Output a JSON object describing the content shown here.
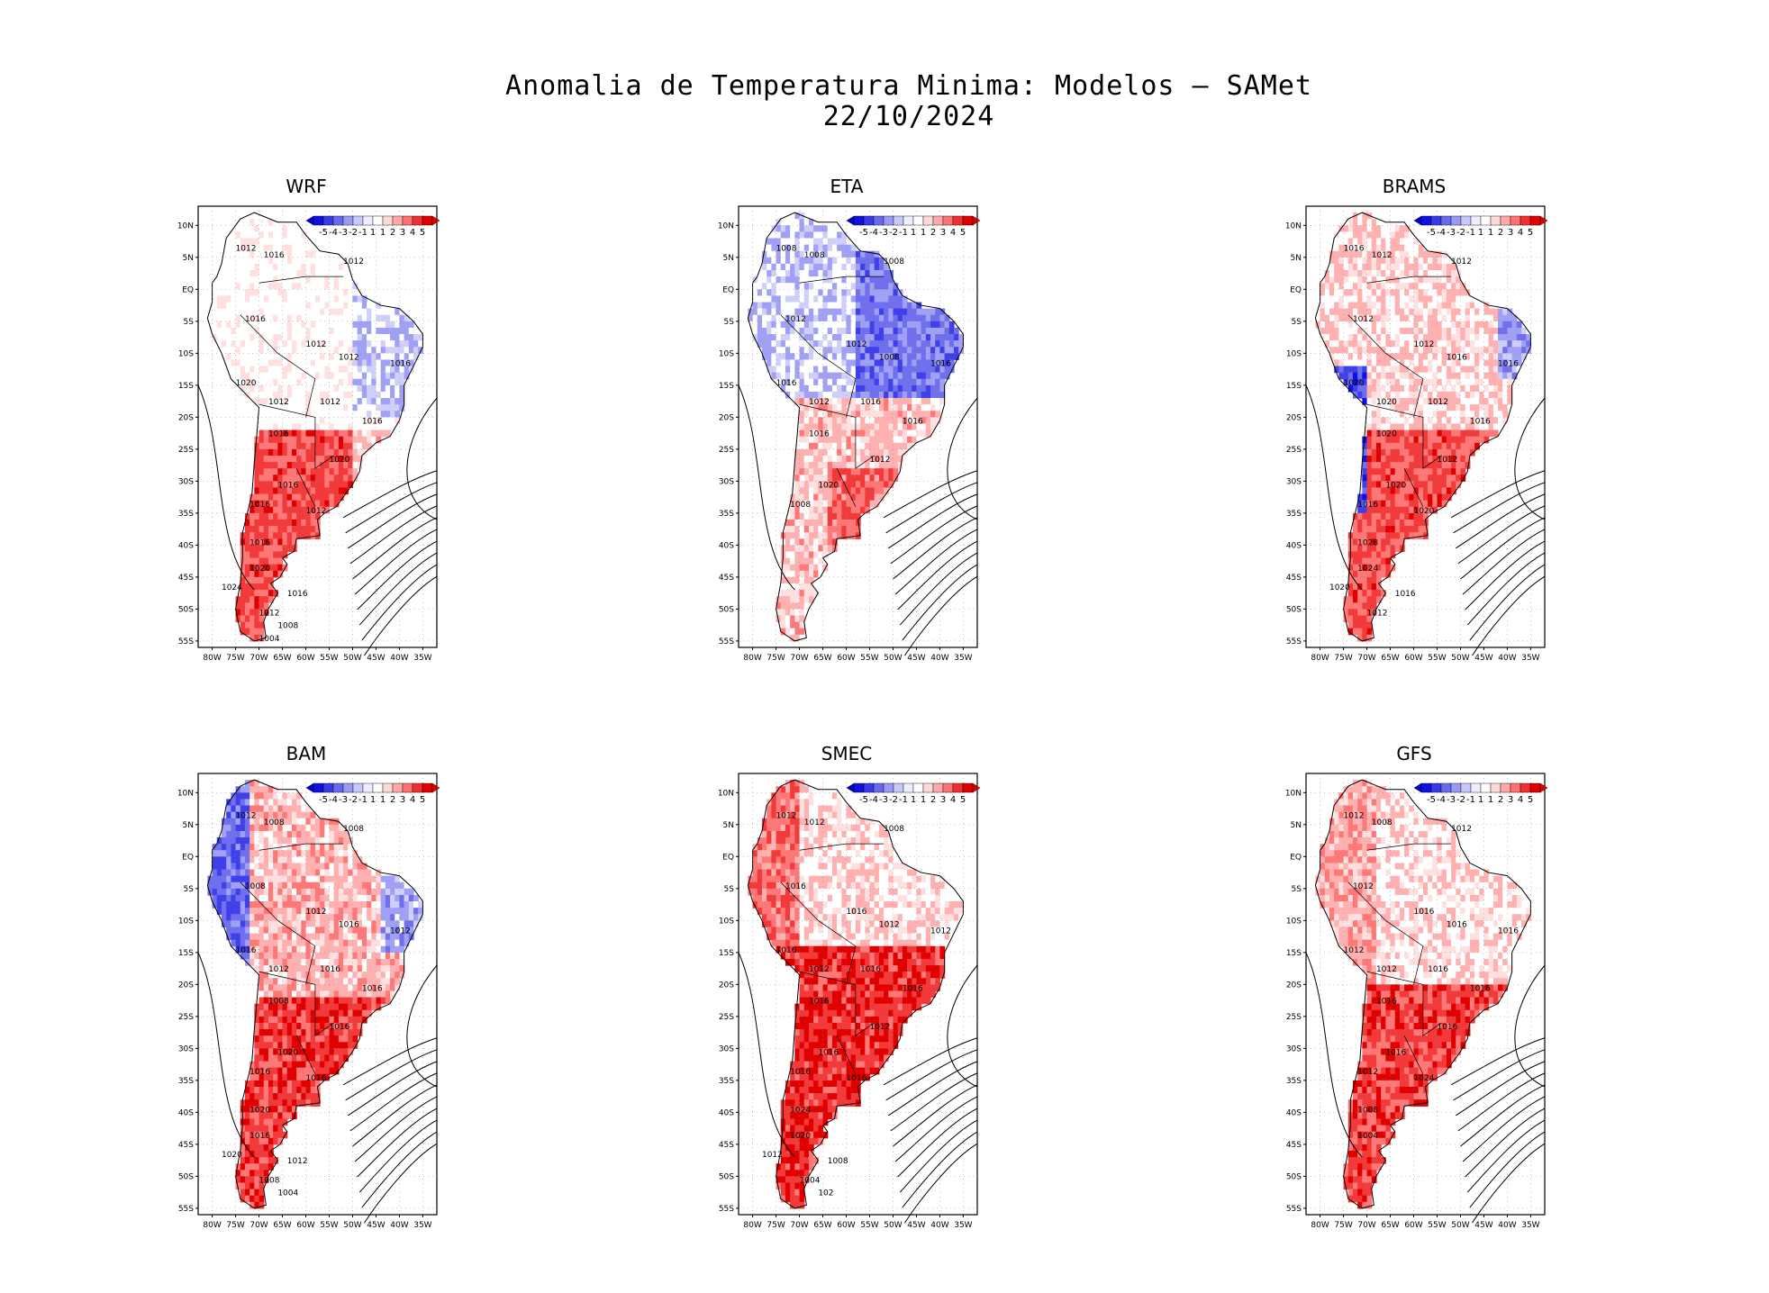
{
  "title_line1": "Anomalia de Temperatura Minima: Modelos — SAMet",
  "title_line2": "22/10/2024",
  "lat_labels": [
    "10N",
    "5N",
    "EQ",
    "5S",
    "10S",
    "15S",
    "20S",
    "25S",
    "30S",
    "35S",
    "40S",
    "45S",
    "50S",
    "55S"
  ],
  "lon_labels": [
    "80W",
    "75W",
    "70W",
    "65W",
    "60W",
    "55W",
    "50W",
    "45W",
    "40W",
    "35W"
  ],
  "legend": {
    "ticks": [
      "-5",
      "-4",
      "-3",
      "-2",
      "-1",
      "1",
      "1",
      "2",
      "3",
      "4",
      "5"
    ],
    "colors": [
      "#1010e0",
      "#3a3ae8",
      "#6a6aee",
      "#9a9af4",
      "#c8c8fa",
      "#eeeeff",
      "#ffffff",
      "#ffd8d8",
      "#ffa8a8",
      "#ff7070",
      "#f03030",
      "#e00000"
    ]
  },
  "panels": [
    {
      "model": "WRF",
      "pattern": "wrf",
      "isobars": [
        "1012",
        "1016",
        "1012",
        "1016",
        "1012",
        "1012",
        "1016",
        "1020",
        "1012",
        "1012",
        "1016",
        "1016",
        "1020",
        "1016",
        "1016",
        "1012",
        "1016",
        "1020",
        "1024",
        "1016",
        "1012",
        "1008",
        "1004"
      ]
    },
    {
      "model": "ETA",
      "pattern": "eta",
      "isobars": [
        "1008",
        "1008",
        "1008",
        "1012",
        "1012",
        "1008",
        "1016",
        "1016",
        "1012",
        "1016",
        "1016",
        "1016",
        "1012",
        "1020",
        "1008"
      ]
    },
    {
      "model": "BRAMS",
      "pattern": "brams",
      "isobars": [
        "1016",
        "1012",
        "1012",
        "1012",
        "1012",
        "1016",
        "1016",
        "1020",
        "1020",
        "1012",
        "1016",
        "1020",
        "1012",
        "1020",
        "1016",
        "1020",
        "1028",
        "1024",
        "1020",
        "1016",
        "1012"
      ]
    },
    {
      "model": "BAM",
      "pattern": "bam",
      "isobars": [
        "1012",
        "1008",
        "1008",
        "1008",
        "1012",
        "1016",
        "1012",
        "1016",
        "1012",
        "1016",
        "1016",
        "1008",
        "1016",
        "1020",
        "1016",
        "1016",
        "1020",
        "1016",
        "1020",
        "1012",
        "1008",
        "1004"
      ]
    },
    {
      "model": "SMEC",
      "pattern": "smec",
      "isobars": [
        "1012",
        "1012",
        "1008",
        "1016",
        "1016",
        "1012",
        "1012",
        "1016",
        "1012",
        "1016",
        "1016",
        "1016",
        "1012",
        "1016",
        "1016",
        "1016",
        "1024",
        "1020",
        "1012",
        "1008",
        "1004",
        "102"
      ]
    },
    {
      "model": "GFS",
      "pattern": "gfs",
      "isobars": [
        "1012",
        "1008",
        "1012",
        "1012",
        "1016",
        "1016",
        "1016",
        "1012",
        "1012",
        "1016",
        "1016",
        "1016",
        "1016",
        "1016",
        "1012",
        "1024",
        "1008",
        "1004"
      ]
    }
  ]
}
